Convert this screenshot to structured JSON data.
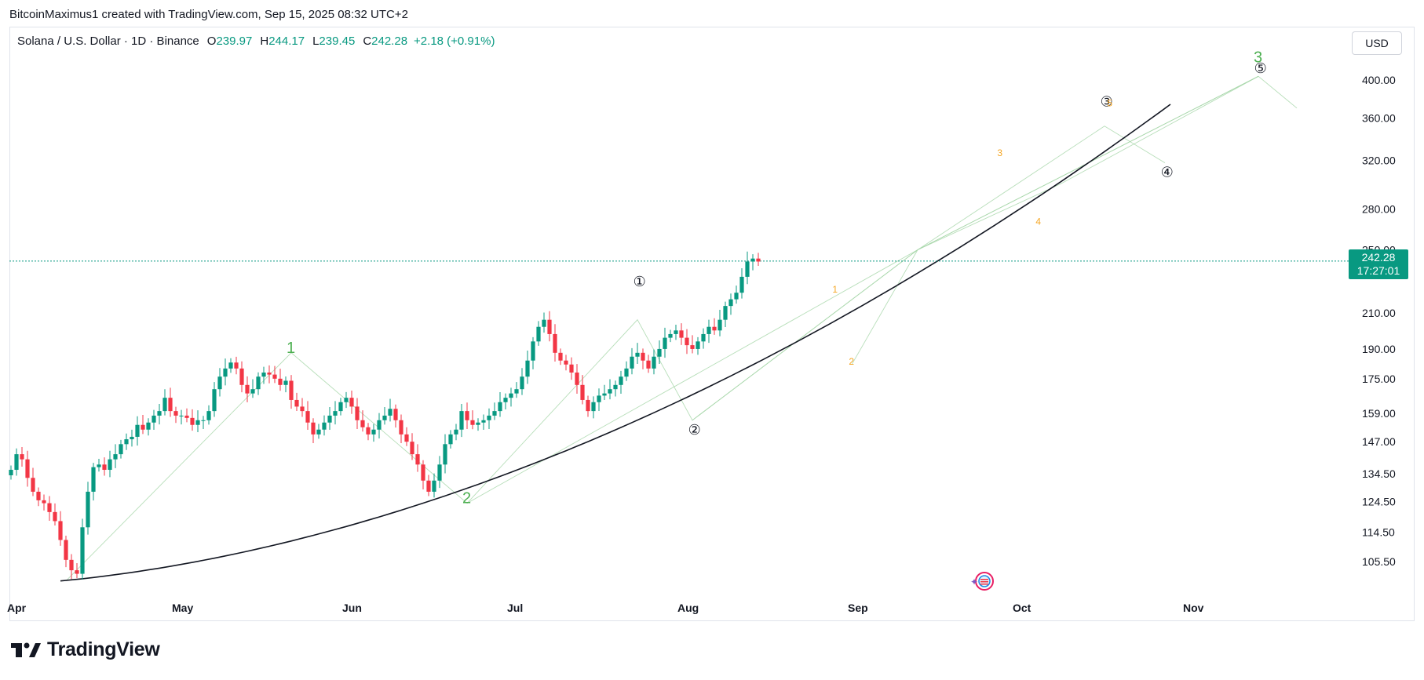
{
  "caption": "BitcoinMaximus1 created with TradingView.com, Sep 15, 2025 08:32 UTC+2",
  "legend": {
    "symbol": "Solana / U.S. Dollar · 1D · Binance",
    "open_label": "O",
    "open": "239.97",
    "high_label": "H",
    "high": "244.17",
    "low_label": "L",
    "low": "239.45",
    "close_label": "C",
    "close": "242.28",
    "change": "+2.18 (+0.91%)"
  },
  "currency": "USD",
  "price_tag": {
    "price": "242.28",
    "countdown": "17:27:01"
  },
  "brand": "TradingView",
  "colors": {
    "up": "#089981",
    "down": "#f23645",
    "accent": "#089981",
    "wave_green": "#4caf50",
    "wave_orange": "#f5a623",
    "curve": "#131722"
  },
  "chart_data": {
    "type": "candlestick",
    "symbol": "SOLUSD",
    "interval": "1D",
    "y_scale": "log",
    "ylim": [
      98,
      440
    ],
    "y_ticks": [
      "400.00",
      "360.00",
      "320.00",
      "280.00",
      "250.00",
      "210.00",
      "190.00",
      "175.00",
      "159.00",
      "147.00",
      "134.50",
      "124.50",
      "114.50",
      "105.50"
    ],
    "x_ticks": [
      "Apr",
      "May",
      "Jun",
      "Jul",
      "Aug",
      "Sep",
      "Oct",
      "Nov"
    ],
    "last_price": 242.28,
    "candles_note": "approximate daily path, values in USD",
    "closes": [
      136,
      142,
      140,
      133,
      128,
      125,
      124,
      121,
      118,
      112,
      106,
      103,
      102,
      116,
      128,
      137,
      138,
      136,
      140,
      142,
      146,
      148,
      149,
      154,
      152,
      155,
      158,
      160,
      166,
      160,
      158,
      158,
      157,
      154,
      156,
      156,
      160,
      170,
      176,
      180,
      183,
      180,
      172,
      168,
      170,
      176,
      178,
      177,
      175,
      172,
      174,
      165,
      162,
      160,
      155,
      150,
      152,
      155,
      158,
      160,
      164,
      166,
      162,
      156,
      153,
      150,
      152,
      156,
      158,
      161,
      156,
      150,
      147,
      142,
      138,
      132,
      128,
      132,
      138,
      146,
      150,
      152,
      160,
      156,
      154,
      155,
      156,
      158,
      160,
      164,
      166,
      168,
      170,
      176,
      184,
      194,
      202,
      206,
      198,
      188,
      184,
      182,
      178,
      172,
      165,
      160,
      164,
      167,
      168,
      170,
      172,
      176,
      180,
      186,
      188,
      184,
      180,
      186,
      190,
      196,
      198,
      200,
      196,
      192,
      190,
      194,
      198,
      202,
      200,
      206,
      214,
      218,
      222,
      232,
      242,
      244,
      242
    ],
    "wave_labels": [
      {
        "label": "1",
        "x": "May 21",
        "y": 188
      },
      {
        "label": "2",
        "x": "Jun 22",
        "y": 124
      },
      {
        "label": "3",
        "x": "Nov 13",
        "y": 420
      },
      {
        "label": "①",
        "x": "Jul 23",
        "y": 226
      },
      {
        "label": "②",
        "x": "Aug 2",
        "y": 150
      },
      {
        "label": "③",
        "x": "Oct 16",
        "y": 372
      },
      {
        "label": "④",
        "x": "Oct 27",
        "y": 306
      },
      {
        "label": "⑤",
        "x": "Nov 13",
        "y": 408
      },
      {
        "label": "1",
        "x": "Aug 28",
        "y": 222
      },
      {
        "label": "2",
        "x": "Aug 31",
        "y": 182
      },
      {
        "label": "3",
        "x": "Sep 27",
        "y": 324
      },
      {
        "label": "4",
        "x": "Oct 4",
        "y": 268
      },
      {
        "label": "5",
        "x": "Oct 17",
        "y": 372
      }
    ],
    "wave_label_text": {
      "g1": "1",
      "g2": "2",
      "g3": "3",
      "c1": "①",
      "c2": "②",
      "c3": "③",
      "c4": "④",
      "c5": "⑤",
      "o1": "1",
      "o2": "2",
      "o3": "3",
      "o4": "4",
      "o5": "5"
    }
  }
}
